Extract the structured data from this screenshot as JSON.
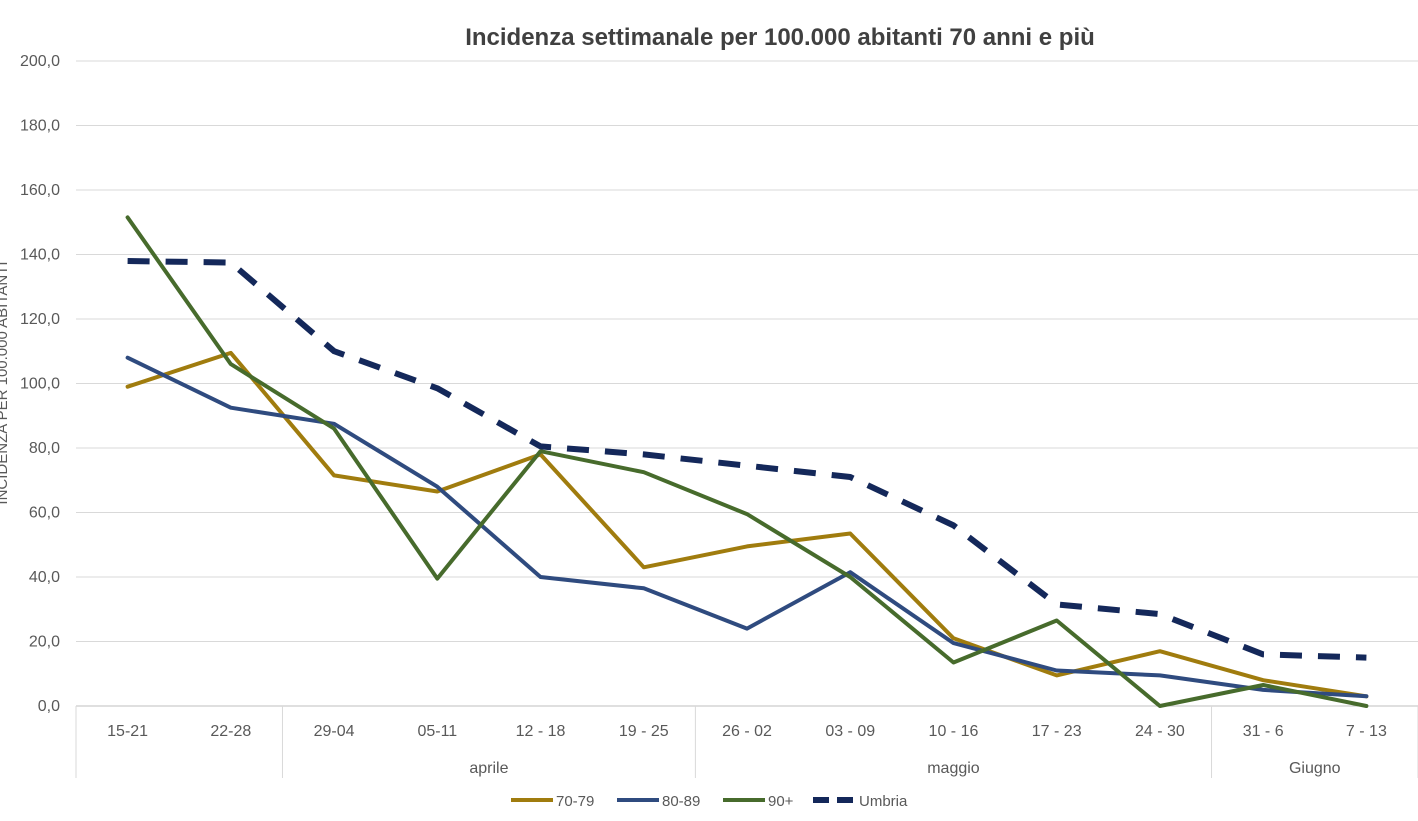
{
  "chart_data": {
    "type": "line",
    "title": "Incidenza settimanale per 100.000 abitanti 70 anni e più",
    "ylabel": "INCIDENZA PER 100.000 ABITANTI",
    "xlabel": "",
    "ylim": [
      0,
      200
    ],
    "y_ticks": [
      "0,0",
      "20,0",
      "40,0",
      "60,0",
      "80,0",
      "100,0",
      "120,0",
      "140,0",
      "160,0",
      "180,0",
      "200,0"
    ],
    "categories": [
      "15-21",
      "22-28",
      "29-04",
      "05-11",
      "12 - 18",
      "19 - 25",
      "26 - 02",
      "03 - 09",
      "10 - 16",
      "17 - 23",
      "24 - 30",
      "31 - 6",
      "7 - 13"
    ],
    "month_groups": [
      {
        "label": "",
        "start": 0,
        "end": 1
      },
      {
        "label": "aprile",
        "start": 2,
        "end": 5
      },
      {
        "label": "maggio",
        "start": 6,
        "end": 10
      },
      {
        "label": "Giugno",
        "start": 11,
        "end": 12
      }
    ],
    "grid": true,
    "legend_position": "bottom",
    "series": [
      {
        "name": "70-79",
        "color": "#A07C0E",
        "dashed": false,
        "values": [
          99,
          109.5,
          71.5,
          66.5,
          78,
          43,
          49.5,
          53.5,
          21,
          9.5,
          17,
          8,
          3
        ]
      },
      {
        "name": "80-89",
        "color": "#2F4B7F",
        "dashed": false,
        "values": [
          108,
          92.5,
          87.5,
          68,
          40,
          36.5,
          24,
          41.5,
          19.5,
          11,
          9.5,
          5,
          3
        ]
      },
      {
        "name": "90+",
        "color": "#476B2C",
        "dashed": false,
        "values": [
          151.5,
          106,
          86,
          39.5,
          79,
          72.5,
          59.5,
          40,
          13.5,
          26.5,
          0,
          6.5,
          0
        ]
      },
      {
        "name": "Umbria",
        "color": "#14285A",
        "dashed": true,
        "values": [
          138,
          137.5,
          110,
          98.5,
          80.5,
          78,
          74.5,
          71,
          56,
          31.5,
          28.5,
          16,
          15
        ]
      }
    ]
  }
}
